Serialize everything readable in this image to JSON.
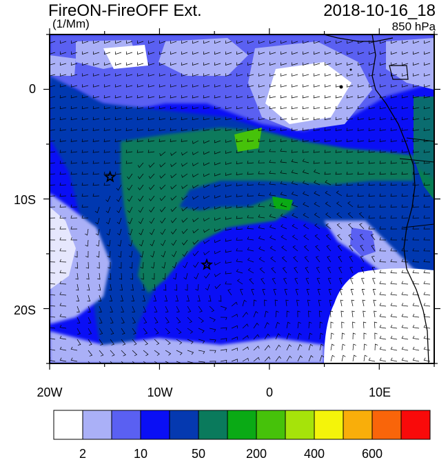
{
  "header": {
    "title": "FireON-FireOFF Ext.",
    "units": "(1/Mm)",
    "datetime": "2018-10-16_18",
    "level": "850 hPa"
  },
  "map": {
    "lat_labels": [
      "0",
      "10S",
      "20S"
    ],
    "lon_labels": [
      "20W",
      "10W",
      "0",
      "10E"
    ],
    "lat_range": [
      -25,
      5
    ],
    "lon_range": [
      -20,
      15
    ],
    "markers": [
      {
        "type": "star",
        "lon": -14.5,
        "lat": -8.0
      },
      {
        "type": "star",
        "lon": -5.7,
        "lat": -16.0
      }
    ]
  },
  "colorbar": {
    "colors": [
      "#ffffff",
      "#aab0f7",
      "#5a60f2",
      "#0a0ff5",
      "#0539b0",
      "#0a7a5c",
      "#0aaa15",
      "#46c20a",
      "#a6e30a",
      "#f4f40a",
      "#f9ae0a",
      "#f9650a",
      "#f90a0a"
    ],
    "tick_labels": [
      "2",
      "10",
      "50",
      "200",
      "400",
      "600"
    ]
  }
}
